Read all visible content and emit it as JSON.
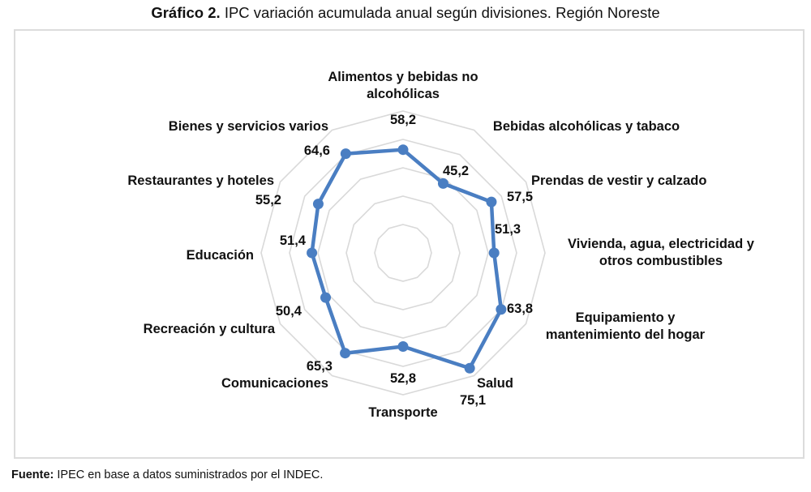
{
  "title": {
    "prefix": "Gráfico 2.",
    "text": " IPC variación acumulada anual según divisiones. Región Noreste"
  },
  "source": {
    "prefix": "Fuente:",
    "text": " IPEC en base a datos suministrados por el INDEC."
  },
  "chart_data": {
    "type": "radar",
    "title": "Gráfico 2. IPC variación acumulada anual según divisiones. Región Noreste",
    "categories": [
      "Alimentos y bebidas no alcohólicas",
      "Bebidas alcohólicas y tabaco",
      "Prendas de vestir y calzado",
      "Vivienda, agua, electricidad y otros combustibles",
      "Equipamiento y mantenimiento del hogar",
      "Salud",
      "Transporte",
      "Comunicaciones",
      "Recreación y cultura",
      "Educación",
      "Restaurantes y hoteles",
      "Bienes y servicios varios"
    ],
    "category_lines": [
      [
        "Alimentos y bebidas no",
        "alcohólicas"
      ],
      [
        "Bebidas alcohólicas y tabaco"
      ],
      [
        "Prendas de vestir y calzado"
      ],
      [
        "Vivienda, agua, electricidad y",
        "otros combustibles"
      ],
      [
        "Equipamiento y",
        "mantenimiento del hogar"
      ],
      [
        "Salud"
      ],
      [
        "Transporte"
      ],
      [
        "Comunicaciones"
      ],
      [
        "Recreación y cultura"
      ],
      [
        "Educación"
      ],
      [
        "Restaurantes y hoteles"
      ],
      [
        "Bienes y servicios varios"
      ]
    ],
    "series": [
      {
        "name": "Variación acumulada anual",
        "values": [
          58.2,
          45.2,
          57.5,
          51.3,
          63.8,
          75.1,
          52.8,
          65.3,
          50.4,
          51.4,
          55.2,
          64.6
        ],
        "value_labels": [
          "58,2",
          "45,2",
          "57,5",
          "51,3",
          "63,8",
          "75,1",
          "52,8",
          "65,3",
          "50,4",
          "51,4",
          "55,2",
          "64,6"
        ],
        "color": "#4A7EC2"
      }
    ],
    "rlim": [
      0,
      80
    ],
    "grid_step": 16,
    "grid": true,
    "grid_color": "#d9d9d9",
    "legend": "none"
  }
}
